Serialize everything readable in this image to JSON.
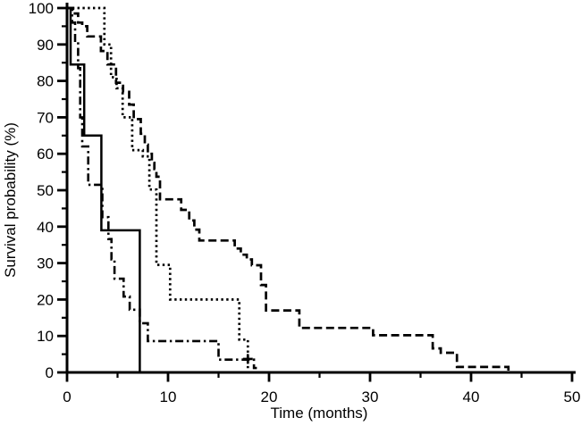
{
  "figure": {
    "background_color": "#ffffff",
    "line_color": "#000000"
  },
  "chart_data": {
    "type": "line",
    "subtype": "kaplan-meier-step-curves",
    "title": "",
    "xlabel": "Time (months)",
    "ylabel": "Survival probability (%)",
    "xlim": [
      0,
      50
    ],
    "ylim": [
      0,
      100
    ],
    "x_major_ticks": [
      0,
      10,
      20,
      30,
      40,
      50
    ],
    "x_minor_ticks": [
      5,
      15,
      25,
      35,
      45
    ],
    "y_major_ticks": [
      0,
      10,
      20,
      30,
      40,
      50,
      60,
      70,
      80,
      90,
      100
    ],
    "y_minor_ticks": [
      5,
      15,
      25,
      35,
      45,
      55,
      65,
      75,
      85,
      95
    ],
    "grid": false,
    "legend": "none",
    "series": [
      {
        "name": "solid-curve",
        "line_style": "solid",
        "points": [
          [
            0,
            100
          ],
          [
            0.35,
            84.5
          ],
          [
            1.7,
            65
          ],
          [
            3.4,
            39
          ],
          [
            7.2,
            0
          ]
        ]
      },
      {
        "name": "dashed-curve",
        "line_style": "dashed",
        "points": [
          [
            0,
            100
          ],
          [
            0.6,
            98.5
          ],
          [
            1.1,
            96
          ],
          [
            1.5,
            95
          ],
          [
            2.0,
            92.2
          ],
          [
            3.35,
            88.2
          ],
          [
            4.0,
            84.5
          ],
          [
            4.85,
            79.5
          ],
          [
            5.55,
            77
          ],
          [
            6.15,
            73.5
          ],
          [
            6.6,
            69.5
          ],
          [
            7.3,
            65.5
          ],
          [
            7.7,
            62.5
          ],
          [
            8.0,
            60
          ],
          [
            8.4,
            57.5
          ],
          [
            8.65,
            55.8
          ],
          [
            8.85,
            53.7
          ],
          [
            9.2,
            47.5
          ],
          [
            11.3,
            44.6
          ],
          [
            12.1,
            41.7
          ],
          [
            12.6,
            39.2
          ],
          [
            13.1,
            36.2
          ],
          [
            16.6,
            34
          ],
          [
            17.2,
            32.3
          ],
          [
            17.8,
            31
          ],
          [
            18.3,
            29.4
          ],
          [
            19.2,
            24
          ],
          [
            19.7,
            17
          ],
          [
            23.0,
            12.2
          ],
          [
            30.3,
            10.2
          ],
          [
            36.2,
            6.6
          ],
          [
            37.0,
            5.4
          ],
          [
            38.6,
            1.5
          ],
          [
            43.7,
            0.5
          ]
        ]
      },
      {
        "name": "dotted-curve",
        "line_style": "dotted",
        "points": [
          [
            0,
            100
          ],
          [
            3.7,
            90
          ],
          [
            4.35,
            81
          ],
          [
            4.9,
            78
          ],
          [
            5.5,
            70
          ],
          [
            6.45,
            61
          ],
          [
            7.5,
            59.3
          ],
          [
            8.15,
            50.2
          ],
          [
            8.85,
            29.5
          ],
          [
            10.2,
            20
          ],
          [
            17.05,
            9
          ],
          [
            17.9,
            0
          ]
        ]
      },
      {
        "name": "dash-dot-curve",
        "line_style": "dash-dot",
        "points": [
          [
            0,
            100
          ],
          [
            0.5,
            96
          ],
          [
            0.8,
            91
          ],
          [
            1.1,
            83.5
          ],
          [
            1.3,
            70
          ],
          [
            1.5,
            62
          ],
          [
            2.1,
            51.5
          ],
          [
            3.5,
            42.6
          ],
          [
            4.1,
            36.6
          ],
          [
            4.4,
            31
          ],
          [
            4.7,
            25.7
          ],
          [
            5.6,
            20.8
          ],
          [
            6.2,
            17.2
          ],
          [
            7.2,
            13.5
          ],
          [
            8.0,
            8.6
          ],
          [
            15.0,
            3.5
          ],
          [
            18.5,
            1.2
          ],
          [
            18.8,
            1.2
          ]
        ]
      }
    ],
    "censor_marks": [
      {
        "x": 17.9,
        "y": 3.7,
        "glyph": "plus"
      }
    ]
  }
}
